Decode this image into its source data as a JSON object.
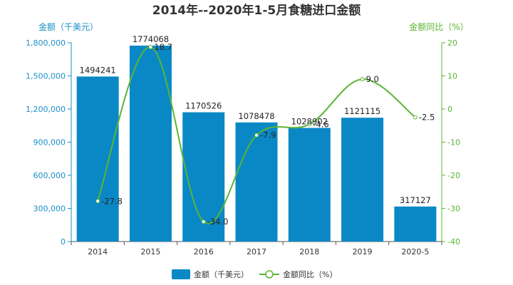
{
  "chart_data": {
    "type": "bar",
    "title": "2014年--2020年1-5月食糖进口金额",
    "categories": [
      "2014",
      "2015",
      "2016",
      "2017",
      "2018",
      "2019",
      "2020-5"
    ],
    "series": [
      {
        "name": "金额（千美元）",
        "type": "bar",
        "axis": "left",
        "values": [
          1494241,
          1774068,
          1170526,
          1078478,
          1028902,
          1121115,
          317127
        ],
        "labels": [
          "1494241",
          "1774068",
          "1170526",
          "1078478",
          "1028902",
          "1121115",
          "317127"
        ]
      },
      {
        "name": "金额同比（%）",
        "type": "line",
        "axis": "right",
        "smooth": true,
        "values": [
          -27.8,
          18.7,
          -34.0,
          -7.9,
          -4.6,
          9.0,
          -2.5
        ],
        "labels": [
          "-27.8",
          "18.7",
          "-34.0",
          "-7.9",
          "-4.6",
          "9.0",
          "-2.5"
        ]
      }
    ],
    "y_left": {
      "label": "金额（千美元）",
      "ylim": [
        0,
        1800000
      ],
      "ticks": [
        "0",
        "300,000",
        "600,000",
        "900,000",
        "1,200,000",
        "1,500,000",
        "1,800,000"
      ]
    },
    "y_right": {
      "label": "金额同比（%）",
      "ylim": [
        -40,
        20
      ],
      "ticks": [
        "-40",
        "-30",
        "-20",
        "-10",
        "0",
        "10",
        "20"
      ]
    },
    "grid": false,
    "legend": "bottom-center",
    "colors": {
      "bar": "#0a88c6",
      "line": "#5ab534",
      "left_axis": "#1a8fc7",
      "right_axis": "#5ab534",
      "text": "#333333"
    }
  }
}
